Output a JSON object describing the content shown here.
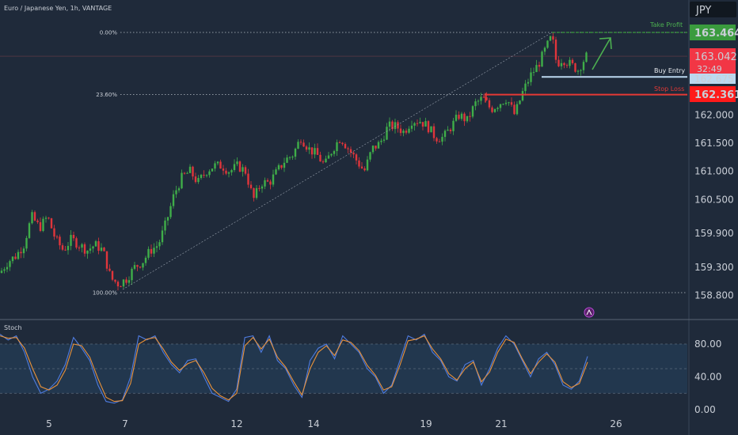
{
  "title": "Euro / Japanese Yen, 1h, VANTAGE",
  "currency": "JPY",
  "indicator_label": "Stoch",
  "fib_levels": [
    {
      "label": "0.00%",
      "price": 163.464
    },
    {
      "label": "23.60%",
      "price": 162.361
    },
    {
      "label": "100.00%",
      "price": 158.85
    }
  ],
  "annotations": {
    "take_profit": "Take Profit",
    "buy_entry": "Buy Entry",
    "stop_loss": "Stop Loss"
  },
  "price_tags": {
    "take_profit": "163.464",
    "current": "163.042",
    "countdown": "32:49",
    "buy_entry": "162.675",
    "stop_loss": "162.361"
  },
  "colors": {
    "background": "#1f2a3a",
    "up_candle": "#3fae49",
    "down_candle": "#e0353b",
    "take_profit": "#3a9b3e",
    "stop_loss": "#e53935",
    "buy_entry": "#bcd8ef",
    "stoch_k": "#4f7ce0",
    "stoch_d": "#e9923a"
  },
  "chart_data": [
    {
      "type": "candlestick",
      "title": "Euro / Japanese Yen, 1h, VANTAGE",
      "x_tick_labels": [
        "5",
        "7",
        "12",
        "14",
        "19",
        "21",
        "26"
      ],
      "y_tick_labels": [
        "163.464",
        "163.042",
        "162.675",
        "162.361",
        "162.000",
        "161.500",
        "161.000",
        "160.500",
        "159.900",
        "159.300",
        "158.800"
      ],
      "ylim": [
        158.7,
        163.75
      ],
      "series": [
        {
          "name": "Price",
          "points_approx": [
            [
              0,
              159.2
            ],
            [
              10,
              159.4
            ],
            [
              20,
              159.5
            ],
            [
              30,
              159.7
            ],
            [
              40,
              160.2
            ],
            [
              50,
              160.0
            ],
            [
              60,
              160.2
            ],
            [
              70,
              159.8
            ],
            [
              80,
              159.6
            ],
            [
              90,
              159.8
            ],
            [
              100,
              159.7
            ],
            [
              110,
              159.6
            ],
            [
              120,
              159.7
            ],
            [
              130,
              159.6
            ],
            [
              140,
              159.1
            ],
            [
              150,
              159.0
            ],
            [
              160,
              159.1
            ],
            [
              170,
              159.3
            ],
            [
              180,
              159.4
            ],
            [
              190,
              159.6
            ],
            [
              200,
              159.7
            ],
            [
              210,
              160.1
            ],
            [
              220,
              160.6
            ],
            [
              230,
              160.9
            ],
            [
              240,
              161.0
            ],
            [
              250,
              160.8
            ],
            [
              260,
              161.0
            ],
            [
              270,
              161.1
            ],
            [
              280,
              161.1
            ],
            [
              290,
              161.0
            ],
            [
              300,
              161.1
            ],
            [
              310,
              161.0
            ],
            [
              320,
              160.5
            ],
            [
              330,
              160.8
            ],
            [
              340,
              160.8
            ],
            [
              350,
              161.0
            ],
            [
              360,
              161.2
            ],
            [
              370,
              161.3
            ],
            [
              380,
              161.6
            ],
            [
              390,
              161.4
            ],
            [
              400,
              161.3
            ],
            [
              410,
              161.1
            ],
            [
              420,
              161.4
            ],
            [
              430,
              161.6
            ],
            [
              440,
              161.4
            ],
            [
              450,
              161.2
            ],
            [
              460,
              161.0
            ],
            [
              470,
              161.4
            ],
            [
              480,
              161.5
            ],
            [
              490,
              161.8
            ],
            [
              500,
              161.8
            ],
            [
              510,
              161.7
            ],
            [
              520,
              161.9
            ],
            [
              530,
              161.9
            ],
            [
              540,
              161.8
            ],
            [
              550,
              161.6
            ],
            [
              560,
              161.6
            ],
            [
              570,
              161.8
            ],
            [
              580,
              162.0
            ],
            [
              590,
              161.9
            ],
            [
              600,
              162.2
            ],
            [
              610,
              162.3
            ],
            [
              620,
              162.1
            ],
            [
              630,
              162.2
            ],
            [
              640,
              162.3
            ],
            [
              650,
              162.0
            ],
            [
              660,
              162.4
            ],
            [
              670,
              162.7
            ],
            [
              680,
              162.9
            ],
            [
              690,
              163.2
            ],
            [
              697,
              163.4
            ],
            [
              703,
              162.9
            ],
            [
              710,
              163.0
            ],
            [
              720,
              162.9
            ],
            [
              730,
              162.8
            ],
            [
              740,
              163.04
            ]
          ]
        }
      ],
      "fibonacci": [
        {
          "level": "0.00%",
          "price": 163.464
        },
        {
          "level": "23.60%",
          "price": 162.361
        },
        {
          "level": "100.00%",
          "price": 158.85
        }
      ],
      "trade": {
        "take_profit": 163.464,
        "buy_entry": 162.675,
        "stop_loss": 162.361,
        "current": 163.042
      }
    },
    {
      "type": "line",
      "name": "Stoch",
      "y_tick_labels": [
        "80.00",
        "40.00",
        "0.00"
      ],
      "ylim": [
        0,
        100
      ],
      "bands": [
        20,
        50,
        80
      ],
      "series": [
        {
          "name": "%K",
          "values_approx": [
            92,
            85,
            90,
            70,
            40,
            20,
            25,
            35,
            55,
            88,
            75,
            60,
            30,
            10,
            8,
            12,
            40,
            90,
            85,
            90,
            70,
            55,
            45,
            60,
            62,
            40,
            20,
            15,
            10,
            25,
            88,
            90,
            70,
            90,
            60,
            50,
            30,
            15,
            60,
            75,
            80,
            62,
            90,
            80,
            70,
            50,
            40,
            20,
            30,
            60,
            90,
            85,
            92,
            70,
            60,
            40,
            35,
            55,
            60,
            30,
            50,
            75,
            90,
            80,
            60,
            40,
            62,
            70,
            55,
            30,
            25,
            35,
            65
          ]
        },
        {
          "name": "%D",
          "values_approx": [
            90,
            87,
            88,
            75,
            50,
            28,
            24,
            30,
            48,
            80,
            78,
            64,
            38,
            15,
            10,
            11,
            32,
            80,
            86,
            88,
            74,
            58,
            48,
            56,
            60,
            45,
            26,
            17,
            12,
            20,
            78,
            88,
            74,
            86,
            64,
            52,
            34,
            18,
            50,
            70,
            78,
            66,
            85,
            82,
            72,
            54,
            42,
            24,
            28,
            54,
            84,
            86,
            90,
            74,
            62,
            44,
            36,
            50,
            58,
            34,
            46,
            70,
            86,
            82,
            62,
            44,
            58,
            68,
            58,
            34,
            27,
            32,
            58
          ]
        }
      ]
    }
  ]
}
